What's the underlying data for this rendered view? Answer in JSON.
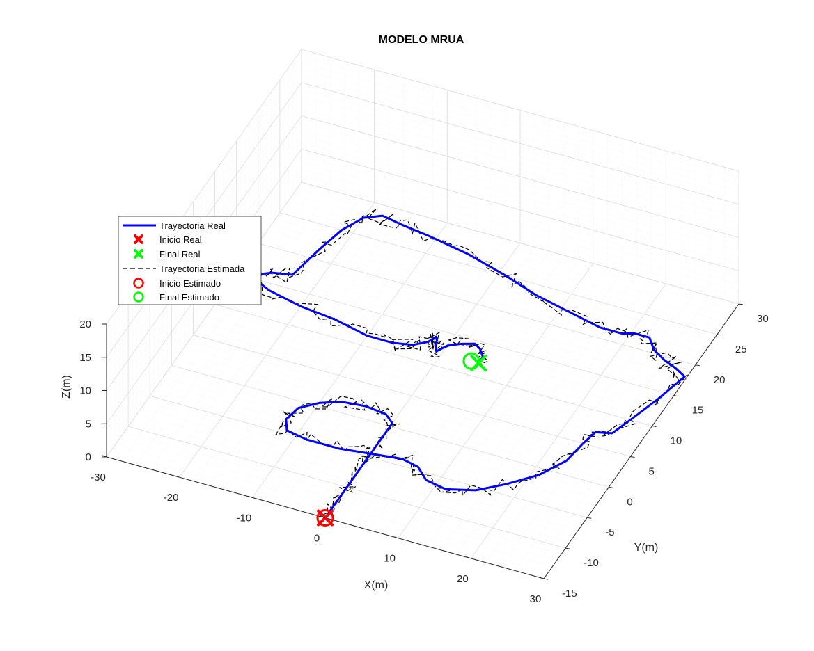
{
  "chart_data": {
    "type": "line3d",
    "title": "MODELO MRUA",
    "xlabel": "X(m)",
    "ylabel": "Y(m)",
    "zlabel": "Z(m)",
    "xlim": [
      -30,
      30
    ],
    "ylim": [
      -15,
      30
    ],
    "zlim": [
      0,
      20
    ],
    "xticks": [
      "-30",
      "-20",
      "-10",
      "0",
      "10",
      "20",
      "30"
    ],
    "yticks": [
      "-15",
      "-10",
      "-5",
      "0",
      "5",
      "10",
      "15",
      "20",
      "25",
      "30"
    ],
    "zticks": [
      "0",
      "5",
      "10",
      "15",
      "20"
    ],
    "grid": true,
    "legend_position": "left",
    "legend": [
      {
        "label": "Trayectoria Real",
        "style": "solid-line",
        "color": "#0000ff"
      },
      {
        "label": "Inicio Real",
        "style": "x-marker",
        "color": "#ff0000"
      },
      {
        "label": "Final Real",
        "style": "x-marker",
        "color": "#00ff00"
      },
      {
        "label": "Trayectoria Estimada",
        "style": "dashed-line",
        "color": "#000000"
      },
      {
        "label": "Inicio Estimado",
        "style": "circle-marker",
        "color": "#ff0000"
      },
      {
        "label": "Final Estimado",
        "style": "circle-marker",
        "color": "#00ff00"
      }
    ],
    "series": [
      {
        "name": "Trayectoria Real",
        "color": "#0000ff",
        "points": [
          [
            0,
            -15,
            0
          ],
          [
            0,
            -13,
            0
          ],
          [
            0,
            -11,
            0
          ],
          [
            0,
            -9,
            0
          ],
          [
            0,
            -7,
            0
          ],
          [
            0,
            -5,
            0
          ],
          [
            0,
            -3,
            0
          ],
          [
            0,
            -1,
            0
          ],
          [
            0,
            0.5,
            0
          ],
          [
            -1.5,
            1.5,
            0
          ],
          [
            -4.5,
            1.8,
            0
          ],
          [
            -7.5,
            1.5,
            0
          ],
          [
            -10,
            0.5,
            0
          ],
          [
            -12,
            -1,
            0
          ],
          [
            -12.5,
            -3,
            0
          ],
          [
            -11.5,
            -4.5,
            0
          ],
          [
            -8.5,
            -5,
            0
          ],
          [
            -4,
            -5,
            0
          ],
          [
            0,
            -4.5,
            0
          ],
          [
            4,
            -4,
            0
          ],
          [
            6.5,
            -4.5,
            0
          ],
          [
            8.5,
            -6,
            0
          ],
          [
            11.5,
            -6.5,
            0
          ],
          [
            15,
            -5.5,
            0
          ],
          [
            18,
            -3.5,
            0
          ],
          [
            21,
            -1,
            0
          ],
          [
            23,
            2,
            0
          ],
          [
            23.5,
            5,
            0
          ],
          [
            24,
            7,
            0
          ],
          [
            26,
            7.5,
            0
          ],
          [
            27,
            10,
            0
          ],
          [
            28.5,
            14,
            0
          ],
          [
            29.7,
            18,
            0
          ],
          [
            28,
            18.8,
            0
          ],
          [
            26,
            19.5,
            0
          ],
          [
            24,
            20.5,
            0
          ],
          [
            22.5,
            22,
            0
          ],
          [
            20.5,
            22,
            0
          ],
          [
            19,
            21.5,
            0
          ],
          [
            16,
            21.5,
            0
          ],
          [
            11,
            22.5,
            0
          ],
          [
            6,
            23.5,
            0
          ],
          [
            1,
            25,
            0
          ],
          [
            -5,
            26.5,
            0
          ],
          [
            -11,
            27.5,
            0
          ],
          [
            -15,
            28,
            0
          ],
          [
            -18,
            28.5,
            0
          ],
          [
            -20,
            27.5,
            0
          ],
          [
            -21.5,
            25,
            0
          ],
          [
            -22.5,
            21.5,
            0
          ],
          [
            -23.5,
            17,
            0
          ],
          [
            -26,
            16.5,
            0
          ],
          [
            -27,
            16,
            0
          ],
          [
            -27.5,
            15,
            0
          ],
          [
            -25,
            14,
            0
          ],
          [
            -20,
            13,
            0
          ],
          [
            -15,
            12.5,
            0
          ],
          [
            -10,
            11.5,
            0
          ],
          [
            -6.5,
            11.5,
            0
          ],
          [
            -4,
            12,
            0
          ],
          [
            -2.5,
            13,
            0
          ],
          [
            -2,
            14,
            0
          ],
          [
            -1.6,
            13.5,
            0
          ],
          [
            -1.5,
            13,
            0
          ],
          [
            -0.8,
            12,
            0
          ],
          [
            0,
            13.2,
            0
          ],
          [
            1.5,
            14,
            0
          ],
          [
            3,
            14.5,
            0
          ],
          [
            4,
            14,
            0
          ],
          [
            5,
            13,
            0
          ],
          [
            5,
            12,
            0
          ]
        ]
      }
    ],
    "markers": [
      {
        "name": "Inicio Real",
        "symbol": "x",
        "color": "#ff0000",
        "x": 0,
        "y": -15,
        "z": 0
      },
      {
        "name": "Final Real",
        "symbol": "x",
        "color": "#00ff00",
        "x": 5,
        "y": 12,
        "z": 0
      },
      {
        "name": "Inicio Estimado",
        "symbol": "o",
        "color": "#ff0000",
        "x": 0,
        "y": -15,
        "z": 0
      },
      {
        "name": "Final Estimado",
        "symbol": "o",
        "color": "#00ff00",
        "x": 4,
        "y": 12,
        "z": 0
      }
    ]
  }
}
